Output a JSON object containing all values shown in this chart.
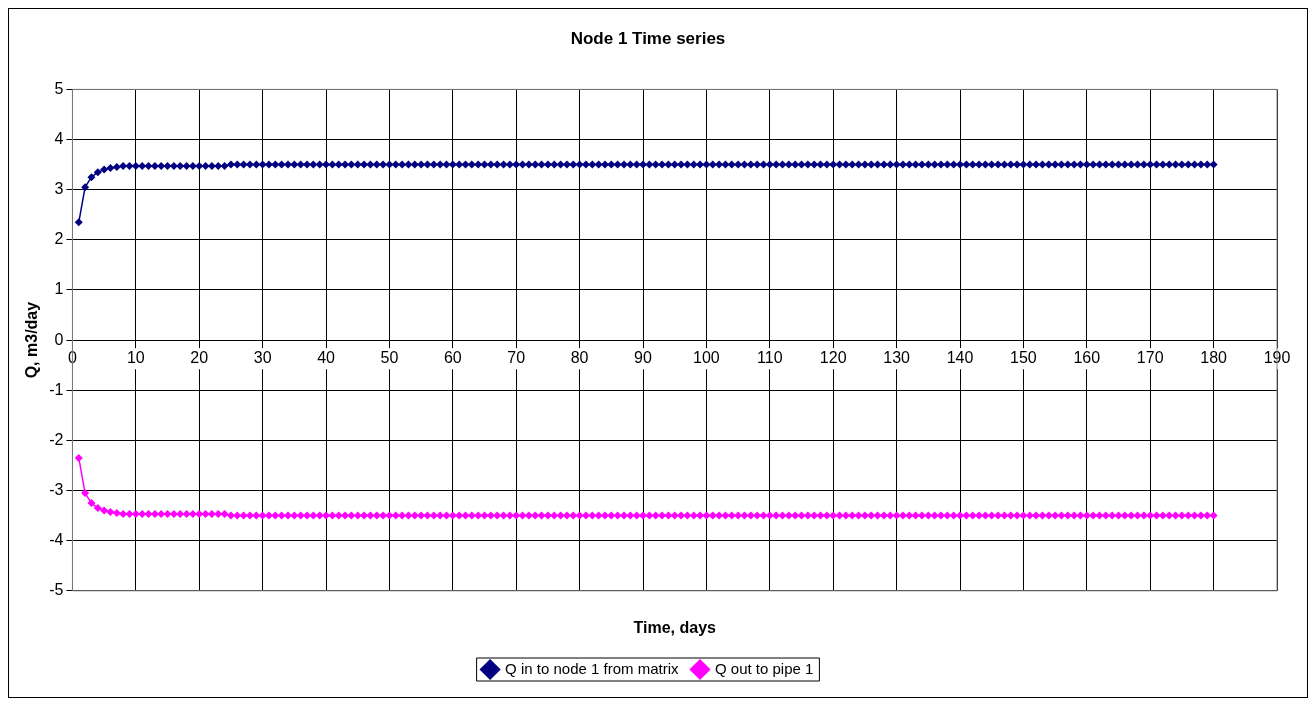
{
  "chart_data": {
    "type": "line",
    "title": "Node 1 Time series",
    "xlabel": "Time, days",
    "ylabel": "Q, m3/day",
    "x": [
      1,
      2,
      3,
      4,
      5,
      6,
      7,
      8,
      9,
      10,
      11,
      12,
      13,
      14,
      15,
      16,
      17,
      18,
      19,
      20,
      21,
      22,
      23,
      24,
      25,
      26,
      27,
      28,
      29,
      30,
      31,
      32,
      33,
      34,
      35,
      36,
      37,
      38,
      39,
      40,
      41,
      42,
      43,
      44,
      45,
      46,
      47,
      48,
      49,
      50,
      51,
      52,
      53,
      54,
      55,
      56,
      57,
      58,
      59,
      60,
      61,
      62,
      63,
      64,
      65,
      66,
      67,
      68,
      69,
      70,
      71,
      72,
      73,
      74,
      75,
      76,
      77,
      78,
      79,
      80,
      81,
      82,
      83,
      84,
      85,
      86,
      87,
      88,
      89,
      90,
      91,
      92,
      93,
      94,
      95,
      96,
      97,
      98,
      99,
      100,
      101,
      102,
      103,
      104,
      105,
      106,
      107,
      108,
      109,
      110,
      111,
      112,
      113,
      114,
      115,
      116,
      117,
      118,
      119,
      120,
      121,
      122,
      123,
      124,
      125,
      126,
      127,
      128,
      129,
      130,
      131,
      132,
      133,
      134,
      135,
      136,
      137,
      138,
      139,
      140,
      141,
      142,
      143,
      144,
      145,
      146,
      147,
      148,
      149,
      150,
      151,
      152,
      153,
      154,
      155,
      156,
      157,
      158,
      159,
      160,
      161,
      162,
      163,
      164,
      165,
      166,
      167,
      168,
      169,
      170,
      171,
      172,
      173,
      174,
      175,
      176,
      177,
      178,
      179,
      180
    ],
    "series": [
      {
        "name": "Q in to node 1 from matrix",
        "color": "#000080",
        "values": [
          2.35,
          3.05,
          3.25,
          3.35,
          3.4,
          3.43,
          3.45,
          3.47,
          3.47,
          3.47,
          3.47,
          3.47,
          3.47,
          3.47,
          3.47,
          3.47,
          3.47,
          3.47,
          3.47,
          3.47,
          3.47,
          3.47,
          3.47,
          3.47,
          3.5,
          3.5,
          3.5,
          3.5,
          3.5,
          3.5,
          3.5,
          3.5,
          3.5,
          3.5,
          3.5,
          3.5,
          3.5,
          3.5,
          3.5,
          3.5,
          3.5,
          3.5,
          3.5,
          3.5,
          3.5,
          3.5,
          3.5,
          3.5,
          3.5,
          3.5,
          3.5,
          3.5,
          3.5,
          3.5,
          3.5,
          3.5,
          3.5,
          3.5,
          3.5,
          3.5,
          3.5,
          3.5,
          3.5,
          3.5,
          3.5,
          3.5,
          3.5,
          3.5,
          3.5,
          3.5,
          3.5,
          3.5,
          3.5,
          3.5,
          3.5,
          3.5,
          3.5,
          3.5,
          3.5,
          3.5,
          3.5,
          3.5,
          3.5,
          3.5,
          3.5,
          3.5,
          3.5,
          3.5,
          3.5,
          3.5,
          3.5,
          3.5,
          3.5,
          3.5,
          3.5,
          3.5,
          3.5,
          3.5,
          3.5,
          3.5,
          3.5,
          3.5,
          3.5,
          3.5,
          3.5,
          3.5,
          3.5,
          3.5,
          3.5,
          3.5,
          3.5,
          3.5,
          3.5,
          3.5,
          3.5,
          3.5,
          3.5,
          3.5,
          3.5,
          3.5,
          3.5,
          3.5,
          3.5,
          3.5,
          3.5,
          3.5,
          3.5,
          3.5,
          3.5,
          3.5,
          3.5,
          3.5,
          3.5,
          3.5,
          3.5,
          3.5,
          3.5,
          3.5,
          3.5,
          3.5,
          3.5,
          3.5,
          3.5,
          3.5,
          3.5,
          3.5,
          3.5,
          3.5,
          3.5,
          3.5,
          3.5,
          3.5,
          3.5,
          3.5,
          3.5,
          3.5,
          3.5,
          3.5,
          3.5,
          3.5,
          3.5,
          3.5,
          3.5,
          3.5,
          3.5,
          3.5,
          3.5,
          3.5,
          3.5,
          3.5,
          3.5,
          3.5,
          3.5,
          3.5,
          3.5,
          3.5,
          3.5,
          3.5,
          3.5,
          3.5
        ]
      },
      {
        "name": "Q out to pipe 1",
        "color": "#ff00ff",
        "values": [
          -2.35,
          -3.05,
          -3.25,
          -3.35,
          -3.4,
          -3.43,
          -3.45,
          -3.47,
          -3.47,
          -3.47,
          -3.47,
          -3.47,
          -3.47,
          -3.47,
          -3.47,
          -3.47,
          -3.47,
          -3.47,
          -3.47,
          -3.47,
          -3.47,
          -3.47,
          -3.47,
          -3.47,
          -3.5,
          -3.5,
          -3.5,
          -3.5,
          -3.5,
          -3.5,
          -3.5,
          -3.5,
          -3.5,
          -3.5,
          -3.5,
          -3.5,
          -3.5,
          -3.5,
          -3.5,
          -3.5,
          -3.5,
          -3.5,
          -3.5,
          -3.5,
          -3.5,
          -3.5,
          -3.5,
          -3.5,
          -3.5,
          -3.5,
          -3.5,
          -3.5,
          -3.5,
          -3.5,
          -3.5,
          -3.5,
          -3.5,
          -3.5,
          -3.5,
          -3.5,
          -3.5,
          -3.5,
          -3.5,
          -3.5,
          -3.5,
          -3.5,
          -3.5,
          -3.5,
          -3.5,
          -3.5,
          -3.5,
          -3.5,
          -3.5,
          -3.5,
          -3.5,
          -3.5,
          -3.5,
          -3.5,
          -3.5,
          -3.5,
          -3.5,
          -3.5,
          -3.5,
          -3.5,
          -3.5,
          -3.5,
          -3.5,
          -3.5,
          -3.5,
          -3.5,
          -3.5,
          -3.5,
          -3.5,
          -3.5,
          -3.5,
          -3.5,
          -3.5,
          -3.5,
          -3.5,
          -3.5,
          -3.5,
          -3.5,
          -3.5,
          -3.5,
          -3.5,
          -3.5,
          -3.5,
          -3.5,
          -3.5,
          -3.5,
          -3.5,
          -3.5,
          -3.5,
          -3.5,
          -3.5,
          -3.5,
          -3.5,
          -3.5,
          -3.5,
          -3.5,
          -3.5,
          -3.5,
          -3.5,
          -3.5,
          -3.5,
          -3.5,
          -3.5,
          -3.5,
          -3.5,
          -3.5,
          -3.5,
          -3.5,
          -3.5,
          -3.5,
          -3.5,
          -3.5,
          -3.5,
          -3.5,
          -3.5,
          -3.5,
          -3.5,
          -3.5,
          -3.5,
          -3.5,
          -3.5,
          -3.5,
          -3.5,
          -3.5,
          -3.5,
          -3.5,
          -3.5,
          -3.5,
          -3.5,
          -3.5,
          -3.5,
          -3.5,
          -3.5,
          -3.5,
          -3.5,
          -3.5,
          -3.5,
          -3.5,
          -3.5,
          -3.5,
          -3.5,
          -3.5,
          -3.5,
          -3.5,
          -3.5,
          -3.5,
          -3.5,
          -3.5,
          -3.5,
          -3.5,
          -3.5,
          -3.5,
          -3.5,
          -3.5,
          -3.5,
          -3.5
        ]
      }
    ],
    "xlim": [
      0,
      190
    ],
    "xticks": [
      0,
      10,
      20,
      30,
      40,
      50,
      60,
      70,
      80,
      90,
      100,
      110,
      120,
      130,
      140,
      150,
      160,
      170,
      180,
      190
    ],
    "ylim": [
      -5,
      5
    ],
    "yticks": [
      -5,
      -4,
      -3,
      -2,
      -1,
      0,
      1,
      2,
      3,
      4,
      5
    ],
    "grid": true,
    "legend": "bottom",
    "marker": "diamond",
    "line_style": "solid"
  }
}
